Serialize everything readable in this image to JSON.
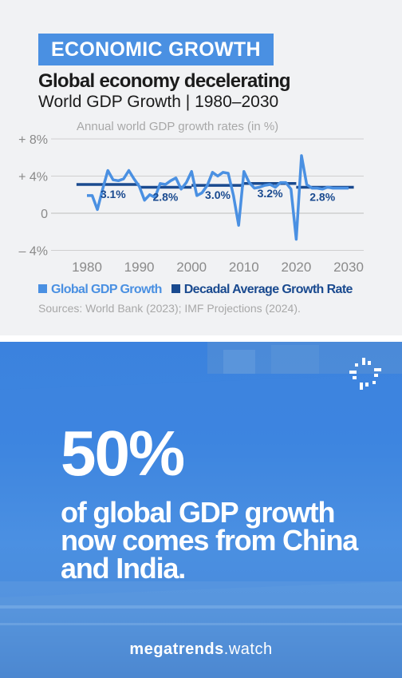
{
  "header": {
    "tag": "ECONOMIC GROWTH",
    "headline": "Global economy decelerating",
    "subhead": "World GDP Growth | 1980–2030"
  },
  "chart_data": {
    "type": "line",
    "title": "Annual world GDP growth rates (in %)",
    "ylim": [
      -4,
      8
    ],
    "yticks": [
      {
        "value": 8,
        "label": "+ 8%"
      },
      {
        "value": 4,
        "label": "+ 4%"
      },
      {
        "value": 0,
        "label": "0"
      },
      {
        "value": -4,
        "label": "– 4%"
      }
    ],
    "xlim": [
      1980,
      2030
    ],
    "xticks": [
      "1980",
      "1990",
      "2000",
      "2010",
      "2020",
      "2030"
    ],
    "grid": true,
    "series": [
      {
        "name": "Global GDP Growth",
        "color": "#4a90e2",
        "x": [
          1980,
          1981,
          1982,
          1983,
          1984,
          1985,
          1986,
          1987,
          1988,
          1989,
          1990,
          1991,
          1992,
          1993,
          1994,
          1995,
          1996,
          1997,
          1998,
          1999,
          2000,
          2001,
          2002,
          2003,
          2004,
          2005,
          2006,
          2007,
          2008,
          2009,
          2010,
          2011,
          2012,
          2013,
          2014,
          2015,
          2016,
          2017,
          2018,
          2019,
          2020,
          2021,
          2022,
          2023,
          2024,
          2025,
          2026,
          2027,
          2028,
          2029,
          2030
        ],
        "y": [
          1.9,
          1.9,
          0.4,
          2.6,
          4.6,
          3.6,
          3.5,
          3.7,
          4.6,
          3.7,
          2.9,
          1.4,
          2.0,
          1.7,
          3.2,
          3.1,
          3.5,
          3.8,
          2.6,
          3.3,
          4.5,
          1.9,
          2.2,
          3.0,
          4.4,
          4.0,
          4.4,
          4.3,
          1.9,
          -1.3,
          4.5,
          3.3,
          2.7,
          2.8,
          3.0,
          3.1,
          2.8,
          3.3,
          3.3,
          2.6,
          -2.8,
          6.2,
          3.1,
          2.7,
          2.7,
          2.6,
          2.8,
          2.7,
          2.7,
          2.7,
          2.7
        ]
      },
      {
        "name": "Decadal Average Growth Rate",
        "color": "#1a4a8f",
        "segments": [
          {
            "from": 1978,
            "to": 1990,
            "value": 3.1,
            "label": "3.1%"
          },
          {
            "from": 1990,
            "to": 2000,
            "value": 2.8,
            "label": "2.8%"
          },
          {
            "from": 2000,
            "to": 2010,
            "value": 3.0,
            "label": "3.0%"
          },
          {
            "from": 2010,
            "to": 2020,
            "value": 3.2,
            "label": "3.2%"
          },
          {
            "from": 2020,
            "to": 2031,
            "value": 2.8,
            "label": "2.8%"
          }
        ]
      }
    ]
  },
  "source": "Sources: World Bank (2023); IMF Projections (2024).",
  "hero": {
    "big_number": "50%",
    "statement": "of global GDP growth now comes from China and India.",
    "footer_bold": "megatrends",
    "footer_rest": ".watch"
  },
  "colors": {
    "accent": "#4a90e2",
    "dark_blue": "#1a4a8f",
    "card_bg": "#f1f2f4"
  },
  "icons": {
    "brand": "megatrends-logo-icon"
  }
}
